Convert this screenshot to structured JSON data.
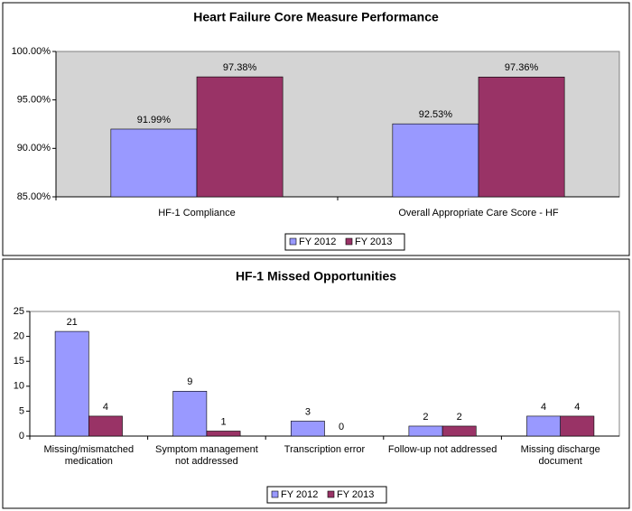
{
  "chart_data": [
    {
      "type": "bar",
      "title": "Heart Failure Core Measure Performance",
      "categories": [
        "HF-1 Compliance",
        "Overall Appropriate Care Score - HF"
      ],
      "series": [
        {
          "name": "FY 2012",
          "color": "#9999ff",
          "values": [
            91.99,
            92.53
          ],
          "value_labels": [
            "91.99%",
            "92.53%"
          ]
        },
        {
          "name": "FY 2013",
          "color": "#993366",
          "values": [
            97.38,
            97.36
          ],
          "value_labels": [
            "97.38%",
            "97.36%"
          ]
        }
      ],
      "ylim": [
        85,
        100
      ],
      "yticks": [
        {
          "value": 85,
          "label": "85.00%"
        },
        {
          "value": 90,
          "label": "90.00%"
        },
        {
          "value": 95,
          "label": "95.00%"
        },
        {
          "value": 100,
          "label": "100.00%"
        }
      ],
      "grid": false,
      "legend": "bottom"
    },
    {
      "type": "bar",
      "title": "HF-1 Missed Opportunities",
      "categories": [
        "Missing/mismatched medication",
        "Symptom management not addressed",
        "Transcription error",
        "Follow-up not addressed",
        "Missing discharge document"
      ],
      "series": [
        {
          "name": "FY 2012",
          "color": "#9999ff",
          "values": [
            21,
            9,
            3,
            2,
            4
          ]
        },
        {
          "name": "FY 2013",
          "color": "#993366",
          "values": [
            4,
            1,
            0,
            2,
            4
          ]
        }
      ],
      "ylim": [
        0,
        25
      ],
      "yticks": [
        0,
        5,
        10,
        15,
        20,
        25
      ],
      "grid": false,
      "legend": "bottom"
    }
  ]
}
